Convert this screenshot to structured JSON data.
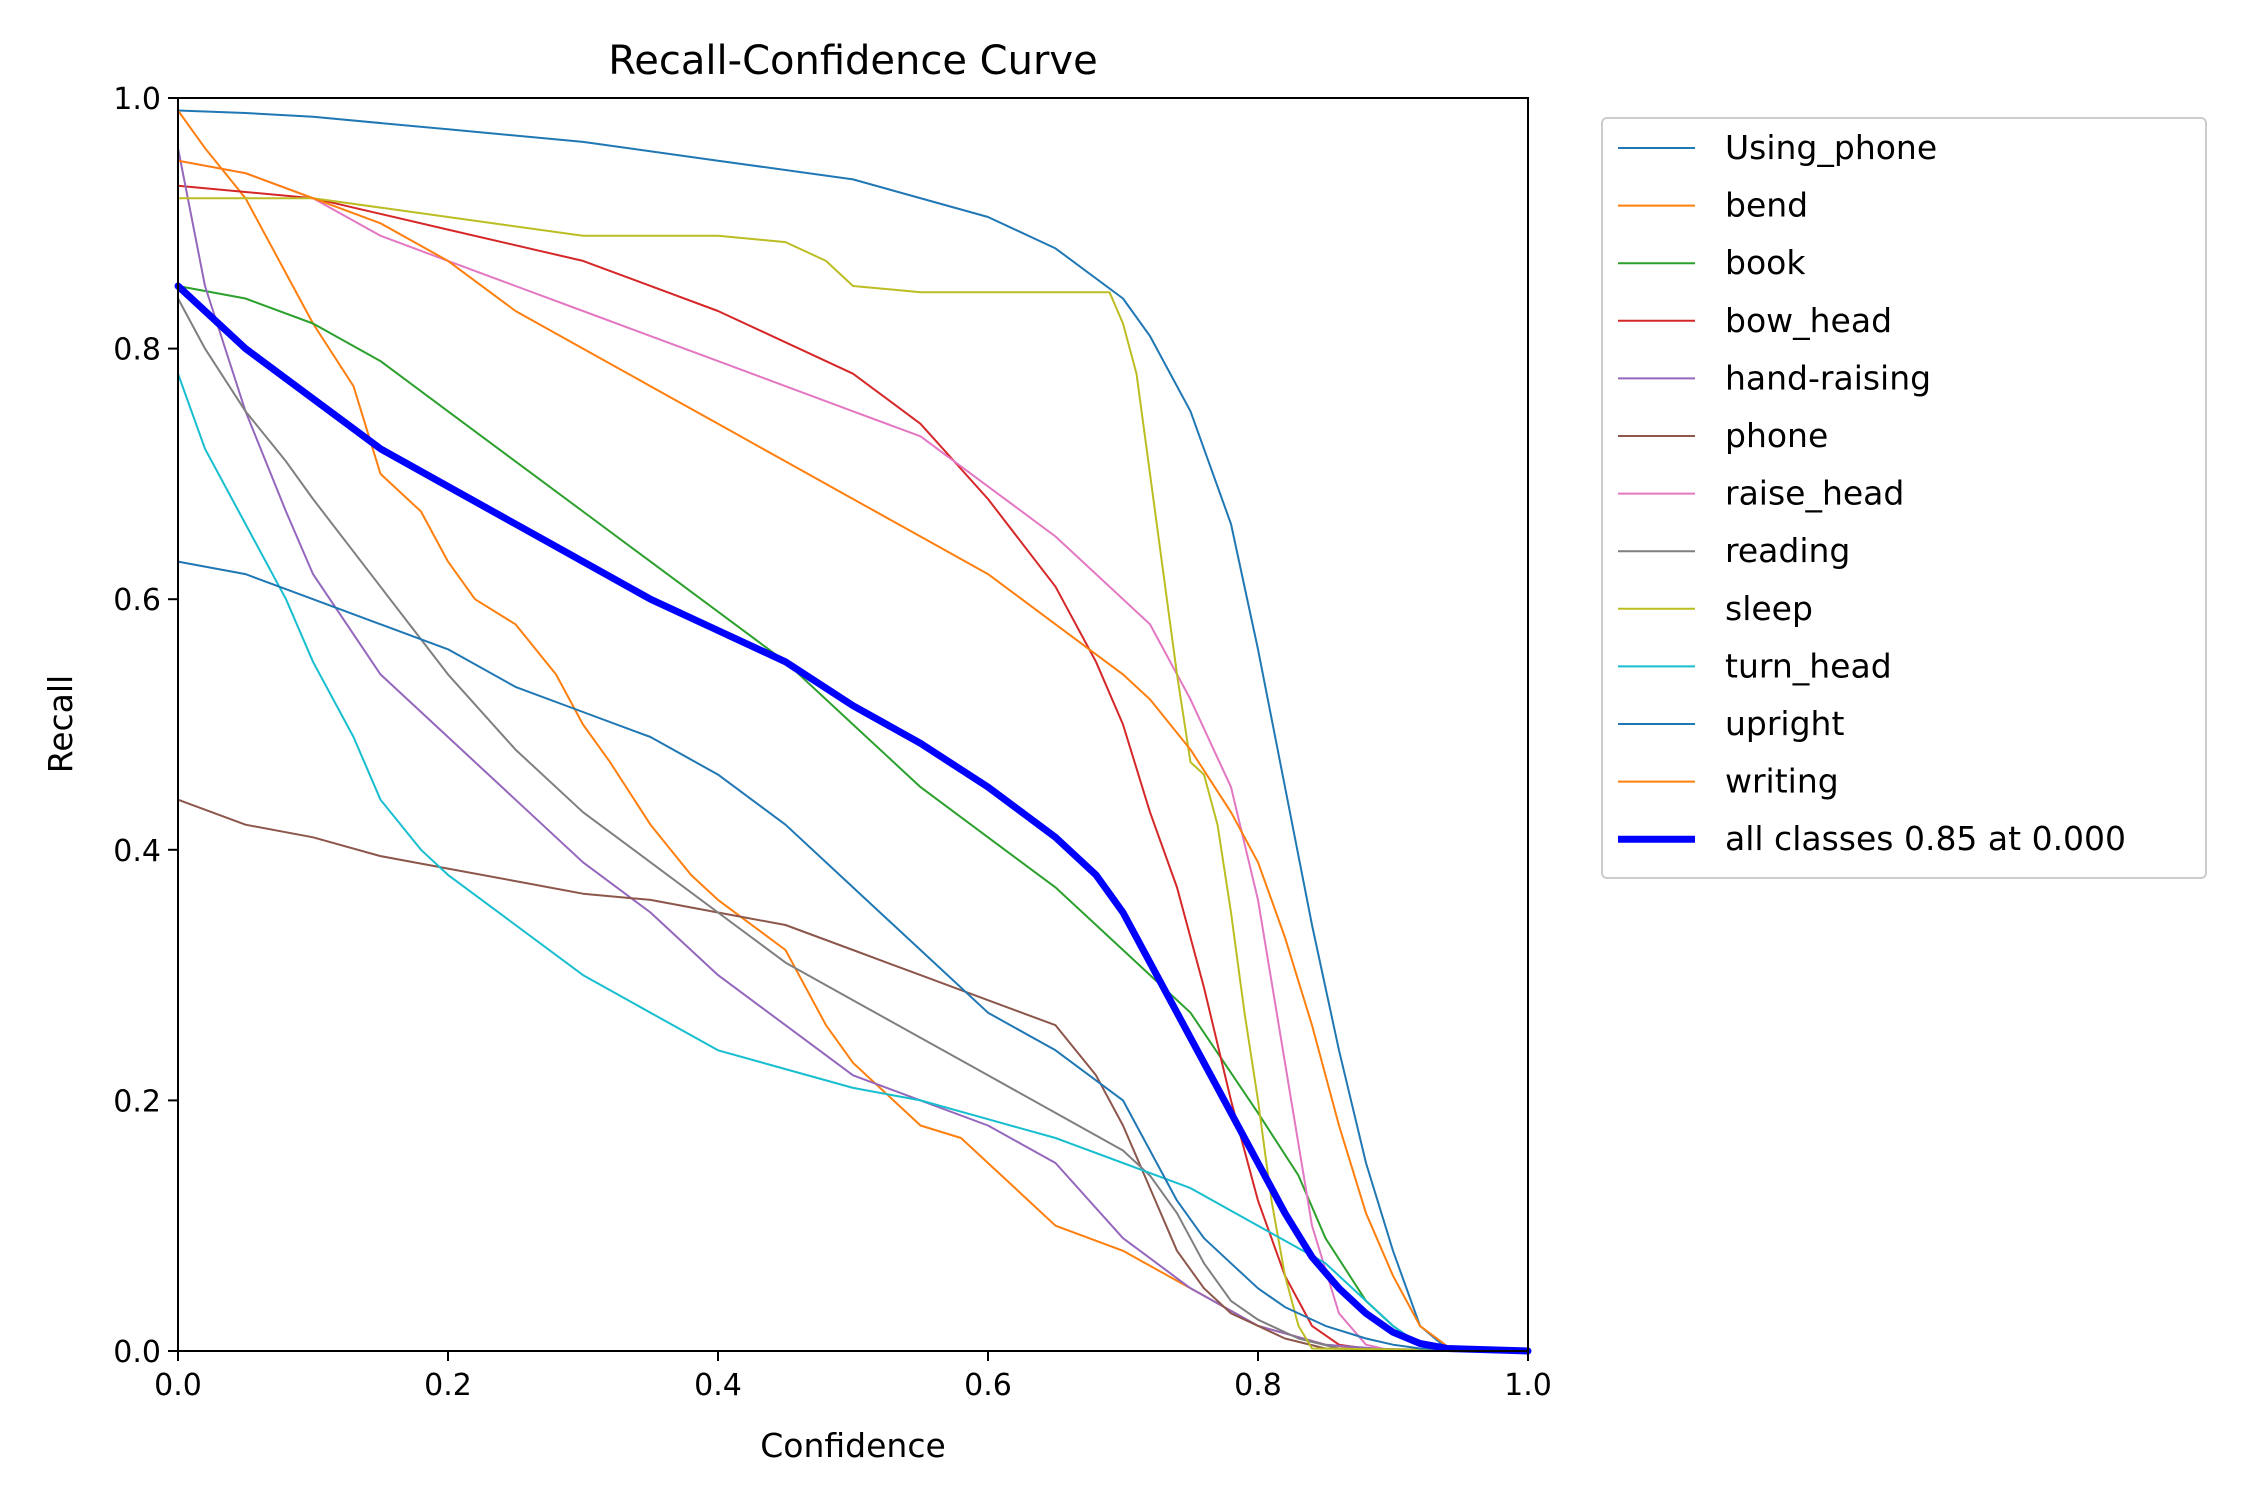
{
  "chart_data": {
    "type": "line",
    "title": "Recall-Confidence Curve",
    "xlabel": "Confidence",
    "ylabel": "Recall",
    "xlim": [
      0.0,
      1.0
    ],
    "ylim": [
      0.0,
      1.0
    ],
    "xticks": [
      "0.0",
      "0.2",
      "0.4",
      "0.6",
      "0.8",
      "1.0"
    ],
    "yticks": [
      "0.0",
      "0.2",
      "0.4",
      "0.6",
      "0.8",
      "1.0"
    ],
    "grid": false,
    "legend_position": "outside-right-top",
    "series": [
      {
        "name": "Using_phone",
        "color": "#1f77b4",
        "width": 2,
        "x": [
          0.0,
          0.05,
          0.1,
          0.2,
          0.3,
          0.4,
          0.5,
          0.6,
          0.65,
          0.7,
          0.72,
          0.75,
          0.78,
          0.8,
          0.82,
          0.84,
          0.86,
          0.88,
          0.9,
          0.92,
          0.94,
          1.0
        ],
        "y": [
          0.99,
          0.988,
          0.985,
          0.975,
          0.965,
          0.95,
          0.935,
          0.905,
          0.88,
          0.84,
          0.81,
          0.75,
          0.66,
          0.56,
          0.45,
          0.34,
          0.24,
          0.15,
          0.08,
          0.02,
          0.002,
          0.0
        ]
      },
      {
        "name": "bend",
        "color": "#ff7f0e",
        "width": 2,
        "x": [
          0.0,
          0.02,
          0.05,
          0.08,
          0.1,
          0.13,
          0.15,
          0.18,
          0.2,
          0.22,
          0.25,
          0.28,
          0.3,
          0.32,
          0.35,
          0.38,
          0.4,
          0.45,
          0.48,
          0.5,
          0.52,
          0.55,
          0.58,
          0.6,
          0.63,
          0.65,
          0.7,
          0.75,
          0.8,
          0.85,
          0.9,
          1.0
        ],
        "y": [
          0.99,
          0.96,
          0.92,
          0.86,
          0.82,
          0.77,
          0.7,
          0.67,
          0.63,
          0.6,
          0.58,
          0.54,
          0.5,
          0.47,
          0.42,
          0.38,
          0.36,
          0.32,
          0.26,
          0.23,
          0.21,
          0.18,
          0.17,
          0.15,
          0.12,
          0.1,
          0.08,
          0.05,
          0.02,
          0.005,
          0.0,
          0.0
        ]
      },
      {
        "name": "book",
        "color": "#2ca02c",
        "width": 2,
        "x": [
          0.0,
          0.05,
          0.1,
          0.15,
          0.2,
          0.25,
          0.3,
          0.35,
          0.4,
          0.45,
          0.5,
          0.55,
          0.6,
          0.65,
          0.7,
          0.75,
          0.8,
          0.83,
          0.85,
          0.88,
          0.9,
          0.92,
          1.0
        ],
        "y": [
          0.85,
          0.84,
          0.82,
          0.79,
          0.75,
          0.71,
          0.67,
          0.63,
          0.59,
          0.55,
          0.5,
          0.45,
          0.41,
          0.37,
          0.32,
          0.27,
          0.19,
          0.14,
          0.09,
          0.04,
          0.02,
          0.005,
          0.0
        ]
      },
      {
        "name": "bow_head",
        "color": "#d62728",
        "width": 2,
        "x": [
          0.0,
          0.1,
          0.2,
          0.3,
          0.4,
          0.45,
          0.5,
          0.55,
          0.6,
          0.65,
          0.68,
          0.7,
          0.72,
          0.74,
          0.76,
          0.78,
          0.8,
          0.82,
          0.84,
          0.86,
          0.88,
          0.9,
          1.0
        ],
        "y": [
          0.93,
          0.92,
          0.895,
          0.87,
          0.83,
          0.805,
          0.78,
          0.74,
          0.68,
          0.61,
          0.55,
          0.5,
          0.43,
          0.37,
          0.29,
          0.2,
          0.12,
          0.06,
          0.02,
          0.005,
          0.002,
          0.0,
          0.0
        ]
      },
      {
        "name": "hand-raising",
        "color": "#9467bd",
        "width": 2,
        "x": [
          0.0,
          0.02,
          0.05,
          0.08,
          0.1,
          0.15,
          0.2,
          0.25,
          0.3,
          0.35,
          0.4,
          0.45,
          0.5,
          0.55,
          0.6,
          0.65,
          0.7,
          0.75,
          0.8,
          0.85,
          0.9,
          1.0
        ],
        "y": [
          0.96,
          0.85,
          0.75,
          0.67,
          0.62,
          0.54,
          0.49,
          0.44,
          0.39,
          0.35,
          0.3,
          0.26,
          0.22,
          0.2,
          0.18,
          0.15,
          0.09,
          0.05,
          0.02,
          0.005,
          0.001,
          0.0
        ]
      },
      {
        "name": "phone",
        "color": "#8c564b",
        "width": 2,
        "x": [
          0.0,
          0.05,
          0.1,
          0.15,
          0.2,
          0.25,
          0.3,
          0.35,
          0.4,
          0.45,
          0.5,
          0.55,
          0.6,
          0.65,
          0.68,
          0.7,
          0.72,
          0.74,
          0.76,
          0.78,
          0.8,
          0.82,
          0.85,
          1.0
        ],
        "y": [
          0.44,
          0.42,
          0.41,
          0.395,
          0.385,
          0.375,
          0.365,
          0.36,
          0.35,
          0.34,
          0.32,
          0.3,
          0.28,
          0.26,
          0.22,
          0.18,
          0.13,
          0.08,
          0.05,
          0.03,
          0.02,
          0.01,
          0.002,
          0.0
        ]
      },
      {
        "name": "raise_head",
        "color": "#e377c2",
        "width": 2,
        "x": [
          0.0,
          0.05,
          0.1,
          0.15,
          0.2,
          0.25,
          0.3,
          0.35,
          0.4,
          0.45,
          0.5,
          0.55,
          0.6,
          0.65,
          0.7,
          0.72,
          0.75,
          0.78,
          0.8,
          0.82,
          0.84,
          0.86,
          0.88,
          0.9,
          1.0
        ],
        "y": [
          0.95,
          0.94,
          0.92,
          0.89,
          0.87,
          0.85,
          0.83,
          0.81,
          0.79,
          0.77,
          0.75,
          0.73,
          0.69,
          0.65,
          0.6,
          0.58,
          0.52,
          0.45,
          0.36,
          0.23,
          0.1,
          0.03,
          0.005,
          0.0,
          0.0
        ]
      },
      {
        "name": "reading",
        "color": "#7f7f7f",
        "width": 2,
        "x": [
          0.0,
          0.02,
          0.05,
          0.08,
          0.1,
          0.15,
          0.2,
          0.25,
          0.3,
          0.35,
          0.4,
          0.45,
          0.5,
          0.55,
          0.6,
          0.65,
          0.7,
          0.72,
          0.74,
          0.76,
          0.78,
          0.8,
          0.83,
          0.86,
          1.0
        ],
        "y": [
          0.84,
          0.8,
          0.75,
          0.71,
          0.68,
          0.61,
          0.54,
          0.48,
          0.43,
          0.39,
          0.35,
          0.31,
          0.28,
          0.25,
          0.22,
          0.19,
          0.16,
          0.14,
          0.11,
          0.07,
          0.04,
          0.025,
          0.01,
          0.002,
          0.0
        ]
      },
      {
        "name": "sleep",
        "color": "#bcbd22",
        "width": 2,
        "x": [
          0.0,
          0.1,
          0.2,
          0.3,
          0.4,
          0.45,
          0.48,
          0.5,
          0.55,
          0.6,
          0.65,
          0.69,
          0.7,
          0.71,
          0.72,
          0.73,
          0.74,
          0.75,
          0.76,
          0.77,
          0.78,
          0.79,
          0.8,
          0.81,
          0.82,
          0.83,
          0.84,
          1.0
        ],
        "y": [
          0.92,
          0.92,
          0.905,
          0.89,
          0.89,
          0.885,
          0.87,
          0.85,
          0.845,
          0.845,
          0.845,
          0.845,
          0.82,
          0.78,
          0.7,
          0.62,
          0.54,
          0.47,
          0.46,
          0.42,
          0.35,
          0.27,
          0.2,
          0.12,
          0.06,
          0.02,
          0.002,
          0.0
        ]
      },
      {
        "name": "turn_head",
        "color": "#17becf",
        "width": 2,
        "x": [
          0.0,
          0.02,
          0.05,
          0.08,
          0.1,
          0.13,
          0.15,
          0.18,
          0.2,
          0.25,
          0.3,
          0.35,
          0.4,
          0.45,
          0.5,
          0.55,
          0.6,
          0.65,
          0.7,
          0.75,
          0.8,
          0.85,
          0.88,
          0.9,
          0.92,
          1.0
        ],
        "y": [
          0.78,
          0.72,
          0.66,
          0.6,
          0.55,
          0.49,
          0.44,
          0.4,
          0.38,
          0.34,
          0.3,
          0.27,
          0.24,
          0.225,
          0.21,
          0.2,
          0.185,
          0.17,
          0.15,
          0.13,
          0.1,
          0.07,
          0.04,
          0.02,
          0.005,
          0.0
        ]
      },
      {
        "name": "upright",
        "color": "#1f77b4",
        "width": 2,
        "x": [
          0.0,
          0.05,
          0.1,
          0.15,
          0.2,
          0.25,
          0.3,
          0.35,
          0.4,
          0.45,
          0.5,
          0.55,
          0.6,
          0.65,
          0.7,
          0.72,
          0.74,
          0.76,
          0.78,
          0.8,
          0.82,
          0.85,
          0.88,
          0.9,
          0.92,
          1.0
        ],
        "y": [
          0.63,
          0.62,
          0.6,
          0.58,
          0.56,
          0.53,
          0.51,
          0.49,
          0.46,
          0.42,
          0.37,
          0.32,
          0.27,
          0.24,
          0.2,
          0.16,
          0.12,
          0.09,
          0.07,
          0.05,
          0.035,
          0.02,
          0.01,
          0.005,
          0.002,
          0.0
        ]
      },
      {
        "name": "writing",
        "color": "#ff7f0e",
        "width": 2,
        "x": [
          0.0,
          0.05,
          0.1,
          0.15,
          0.2,
          0.25,
          0.3,
          0.35,
          0.4,
          0.45,
          0.5,
          0.55,
          0.6,
          0.65,
          0.7,
          0.72,
          0.75,
          0.78,
          0.8,
          0.82,
          0.84,
          0.86,
          0.88,
          0.9,
          0.92,
          0.94,
          1.0
        ],
        "y": [
          0.95,
          0.94,
          0.92,
          0.9,
          0.87,
          0.83,
          0.8,
          0.77,
          0.74,
          0.71,
          0.68,
          0.65,
          0.62,
          0.58,
          0.54,
          0.52,
          0.48,
          0.43,
          0.39,
          0.33,
          0.26,
          0.18,
          0.11,
          0.06,
          0.02,
          0.004,
          0.0
        ]
      },
      {
        "name": "all classes 0.85 at 0.000",
        "color": "#0000ff",
        "width": 7,
        "x": [
          0.0,
          0.05,
          0.1,
          0.15,
          0.2,
          0.25,
          0.3,
          0.35,
          0.4,
          0.45,
          0.5,
          0.55,
          0.6,
          0.65,
          0.68,
          0.7,
          0.72,
          0.75,
          0.78,
          0.8,
          0.82,
          0.84,
          0.86,
          0.88,
          0.9,
          0.92,
          0.94,
          1.0
        ],
        "y": [
          0.85,
          0.8,
          0.76,
          0.72,
          0.69,
          0.66,
          0.63,
          0.6,
          0.575,
          0.55,
          0.515,
          0.485,
          0.45,
          0.41,
          0.38,
          0.35,
          0.31,
          0.25,
          0.19,
          0.15,
          0.11,
          0.075,
          0.05,
          0.03,
          0.015,
          0.006,
          0.002,
          0.0
        ]
      }
    ]
  }
}
